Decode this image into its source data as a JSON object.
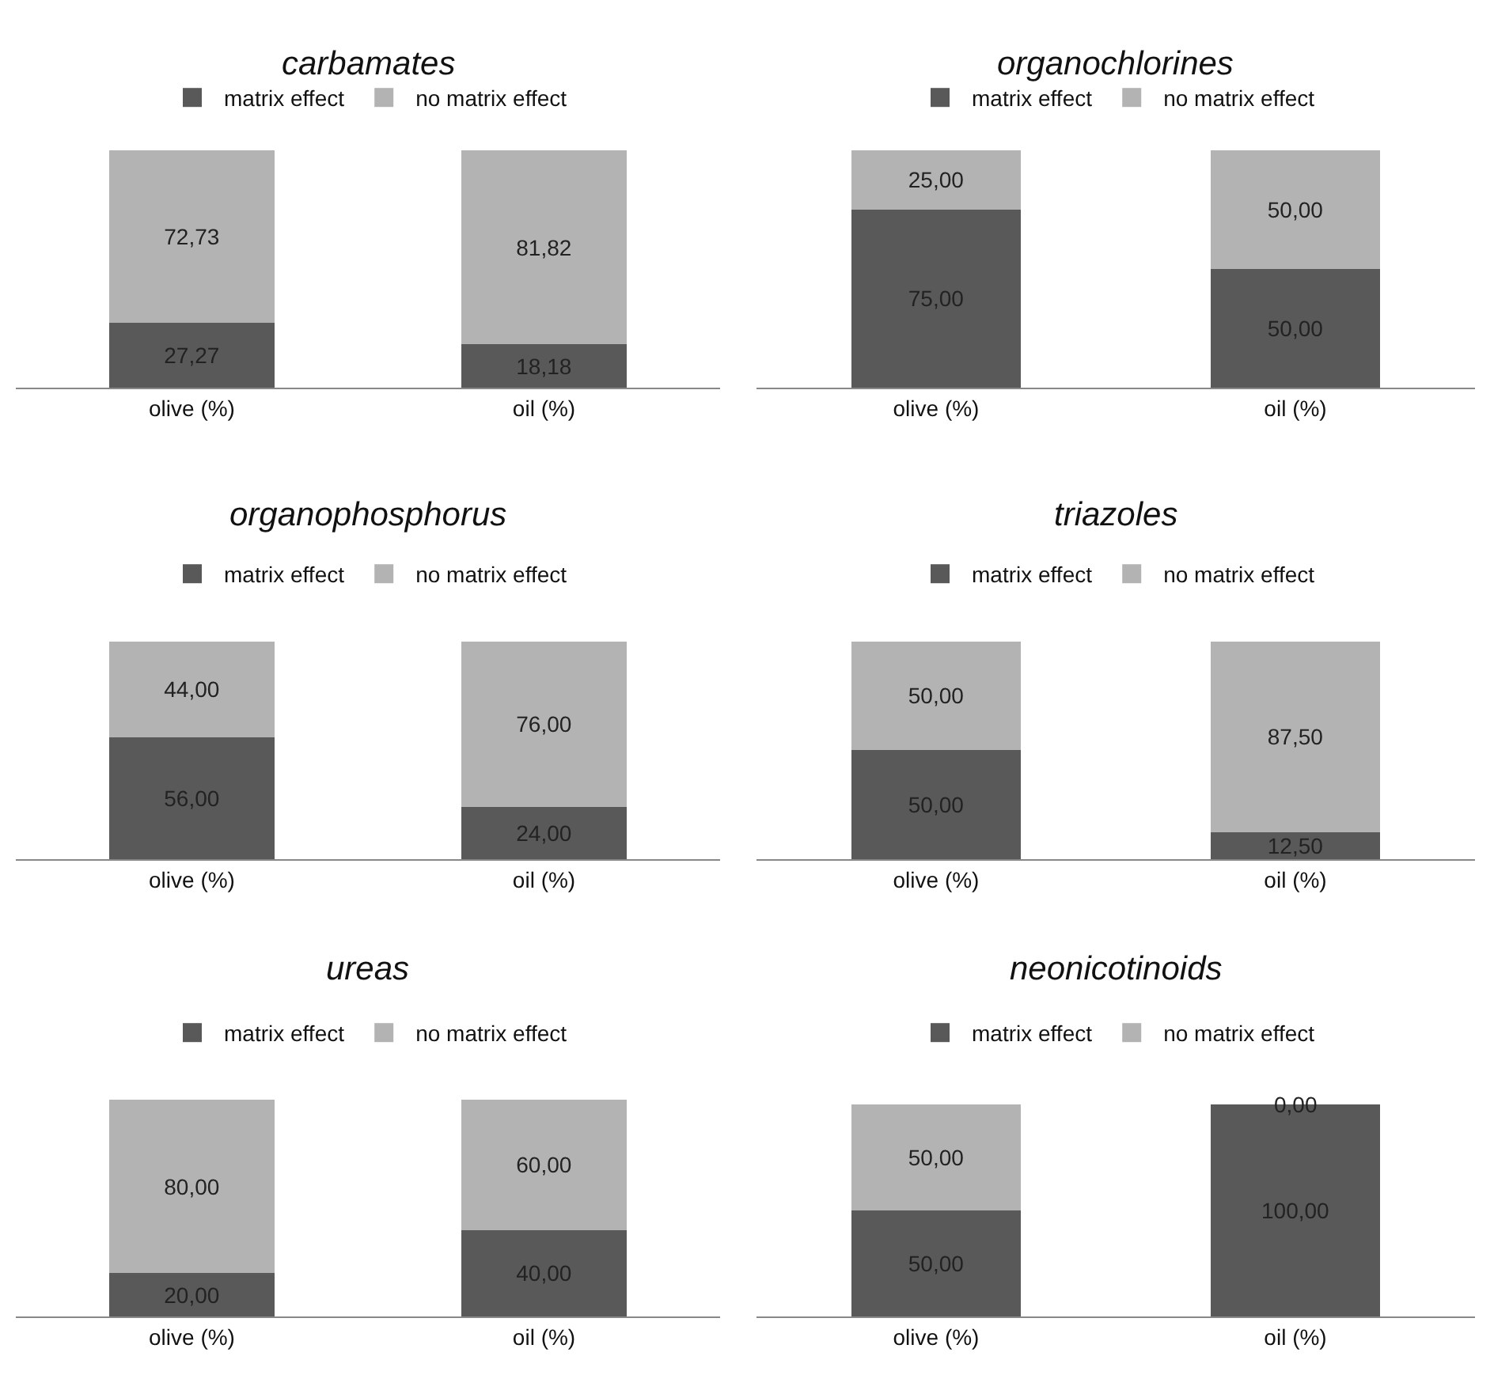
{
  "chart_data": [
    {
      "type": "bar",
      "title": "carbamates",
      "categories": [
        "olive (%)",
        "oil (%)"
      ],
      "stacked": true,
      "legend": "top",
      "series": [
        {
          "name": "matrix effect",
          "color": "#595959",
          "values": [
            27.27,
            18.18
          ],
          "value_labels": [
            "27,27",
            "18,18"
          ]
        },
        {
          "name": "no matrix effect",
          "color": "#b3b3b3",
          "values": [
            72.73,
            81.82
          ],
          "value_labels": [
            "72,73",
            "81,82"
          ]
        }
      ]
    },
    {
      "type": "bar",
      "title": "organochlorines",
      "categories": [
        "olive (%)",
        "oil (%)"
      ],
      "stacked": true,
      "legend": "top",
      "series": [
        {
          "name": "matrix effect",
          "color": "#595959",
          "values": [
            75,
            50
          ],
          "value_labels": [
            "75,00",
            "50,00"
          ]
        },
        {
          "name": "no matrix effect",
          "color": "#b3b3b3",
          "values": [
            25,
            50
          ],
          "value_labels": [
            "25,00",
            "50,00"
          ]
        }
      ]
    },
    {
      "type": "bar",
      "title": "organophosphorus",
      "categories": [
        "olive (%)",
        "oil (%)"
      ],
      "stacked": true,
      "legend": "top",
      "series": [
        {
          "name": "matrix effect",
          "color": "#595959",
          "values": [
            56,
            24
          ],
          "value_labels": [
            "56,00",
            "24,00"
          ]
        },
        {
          "name": "no matrix effect",
          "color": "#b3b3b3",
          "values": [
            44,
            76
          ],
          "value_labels": [
            "44,00",
            "76,00"
          ]
        }
      ]
    },
    {
      "type": "bar",
      "title": "triazoles",
      "categories": [
        "olive (%)",
        "oil (%)"
      ],
      "stacked": true,
      "legend": "top",
      "series": [
        {
          "name": "matrix effect",
          "color": "#595959",
          "values": [
            50,
            12.5
          ],
          "value_labels": [
            "50,00",
            "12,50"
          ]
        },
        {
          "name": "no matrix effect",
          "color": "#b3b3b3",
          "values": [
            50,
            87.5
          ],
          "value_labels": [
            "50,00",
            "87,50"
          ]
        }
      ]
    },
    {
      "type": "bar",
      "title": "ureas",
      "categories": [
        "olive (%)",
        "oil (%)"
      ],
      "stacked": true,
      "legend": "top",
      "series": [
        {
          "name": "matrix effect",
          "color": "#595959",
          "values": [
            20,
            40
          ],
          "value_labels": [
            "20,00",
            "40,00"
          ]
        },
        {
          "name": "no matrix effect",
          "color": "#b3b3b3",
          "values": [
            80,
            60
          ],
          "value_labels": [
            "80,00",
            "60,00"
          ]
        }
      ]
    },
    {
      "type": "bar",
      "title": "neonicotinoids",
      "categories": [
        "olive (%)",
        "oil (%)"
      ],
      "stacked": true,
      "legend": "top",
      "series": [
        {
          "name": "matrix effect",
          "color": "#595959",
          "values": [
            50,
            100
          ],
          "value_labels": [
            "50,00",
            "100,00"
          ]
        },
        {
          "name": "no matrix effect",
          "color": "#b3b3b3",
          "values": [
            50,
            0
          ],
          "value_labels": [
            "50,00",
            "0,00"
          ]
        }
      ]
    }
  ]
}
